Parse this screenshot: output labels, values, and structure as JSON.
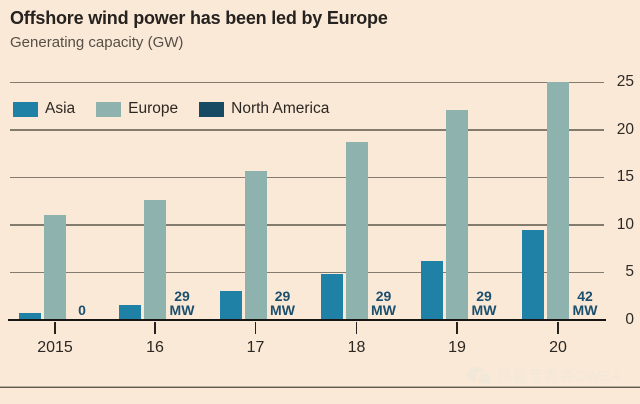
{
  "header": {
    "title": "Offshore wind power has been led by Europe",
    "subtitle": "Generating capacity (GW)"
  },
  "legend": {
    "items": [
      {
        "label": "Asia",
        "color": "#1f81a5"
      },
      {
        "label": "Europe",
        "color": "#8eb2ae"
      },
      {
        "label": "North America",
        "color": "#174b63"
      }
    ]
  },
  "chart_data": {
    "type": "bar",
    "title": "Offshore wind power has been led by Europe",
    "ylabel": "Generating capacity (GW)",
    "categories": [
      "2015",
      "16",
      "17",
      "18",
      "19",
      "20"
    ],
    "series": [
      {
        "name": "Asia",
        "color": "#1f81a5",
        "values": [
          0.7,
          1.6,
          3.0,
          4.8,
          6.2,
          9.5
        ]
      },
      {
        "name": "Europe",
        "color": "#8eb2ae",
        "values": [
          11.0,
          12.6,
          15.7,
          18.7,
          22.1,
          25.0
        ]
      },
      {
        "name": "North America",
        "color": "#174b63",
        "values": [
          0,
          0.029,
          0.029,
          0.029,
          0.029,
          0.042
        ]
      }
    ],
    "annotations": [
      {
        "category": "2015",
        "series": "North America",
        "lines": [
          "0"
        ]
      },
      {
        "category": "16",
        "series": "North America",
        "lines": [
          "29",
          "MW"
        ]
      },
      {
        "category": "17",
        "series": "North America",
        "lines": [
          "29",
          "MW"
        ]
      },
      {
        "category": "18",
        "series": "North America",
        "lines": [
          "29",
          "MW"
        ]
      },
      {
        "category": "19",
        "series": "North America",
        "lines": [
          "29",
          "MW"
        ]
      },
      {
        "category": "20",
        "series": "North America",
        "lines": [
          "42",
          "MW"
        ]
      }
    ],
    "yticks": [
      0,
      5,
      10,
      15,
      20,
      25
    ],
    "ylim": [
      0,
      25
    ],
    "grid": "horizontal",
    "legend_position": "top-left-inside",
    "axis_side": "right"
  },
  "watermark": {
    "icon": "wechat-icon",
    "text": "风能专委会CWEA"
  },
  "colors": {
    "background": "#fbe9d7",
    "asia": "#1f81a5",
    "europe": "#8eb2ae",
    "north_america": "#174b63",
    "annotation_text": "#1b4f6d",
    "axis_line": "#181512",
    "gridline": "#837b6d",
    "watermark_text": "#f1e8da"
  }
}
